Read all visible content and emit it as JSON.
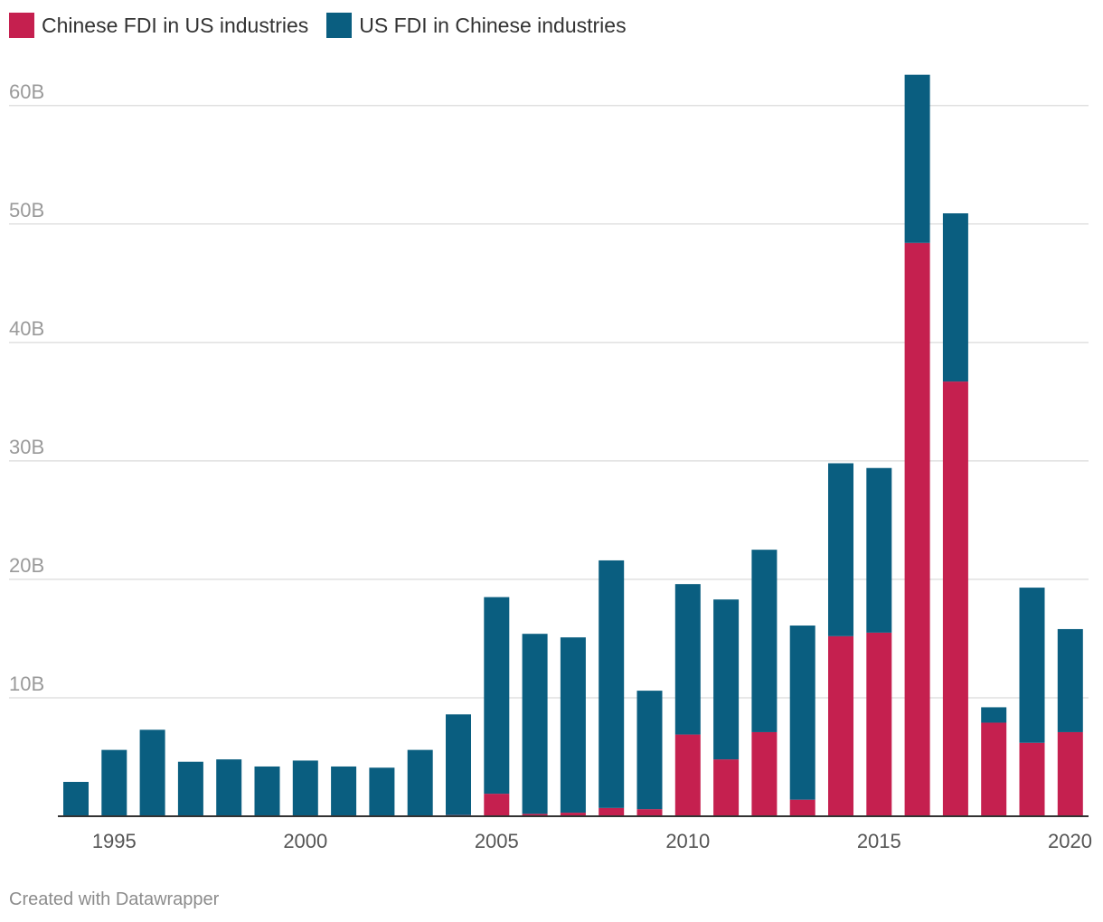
{
  "chart_data": {
    "type": "bar",
    "stacked": true,
    "x": [
      1994,
      1995,
      1996,
      1997,
      1998,
      1999,
      2000,
      2001,
      2002,
      2003,
      2004,
      2005,
      2006,
      2007,
      2008,
      2009,
      2010,
      2011,
      2012,
      2013,
      2014,
      2015,
      2016,
      2017,
      2018,
      2019,
      2020
    ],
    "series": [
      {
        "name": "Chinese FDI in US industries",
        "color": "#c5204f",
        "values": [
          0,
          0,
          0,
          0,
          0,
          0,
          0,
          0,
          0,
          0,
          0.1,
          1.9,
          0.2,
          0.3,
          0.7,
          0.6,
          6.9,
          4.8,
          7.1,
          1.4,
          15.2,
          15.5,
          48.4,
          36.7,
          7.9,
          6.2,
          7.1
        ]
      },
      {
        "name": "US FDI in Chinese industries",
        "color": "#0a5e80",
        "values": [
          2.9,
          5.6,
          7.3,
          4.6,
          4.8,
          4.2,
          4.7,
          4.2,
          4.1,
          5.6,
          8.5,
          16.6,
          15.2,
          14.8,
          20.9,
          10.0,
          12.7,
          13.5,
          15.4,
          14.7,
          14.6,
          13.9,
          14.2,
          14.2,
          1.3,
          13.1,
          8.7
        ]
      }
    ],
    "ylim": [
      0,
      62.5
    ],
    "yticks": [
      10,
      20,
      30,
      40,
      50,
      60
    ],
    "ytick_labels": [
      "10B",
      "20B",
      "30B",
      "40B",
      "50B",
      "60B"
    ],
    "xticks": [
      1995,
      2000,
      2005,
      2010,
      2015,
      2020
    ],
    "xtick_labels": [
      "1995",
      "2000",
      "2005",
      "2010",
      "2015",
      "2020"
    ],
    "grid": true,
    "legend_position": "top-left"
  },
  "footer": "Created with Datawrapper"
}
